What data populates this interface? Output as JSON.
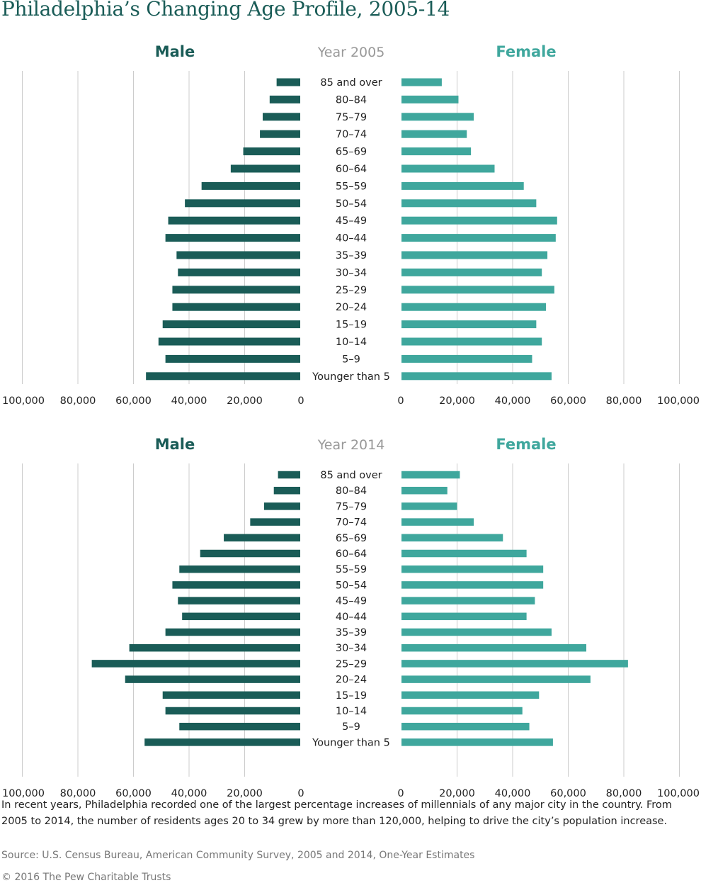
{
  "title": "Philadelphia’s Changing Age Profile, 2005-14",
  "colors": {
    "male": "#1a5c57",
    "female": "#3fa79d",
    "grid": "#cccccc",
    "year_label": "#999999",
    "text": "#222222"
  },
  "chart_data": [
    {
      "type": "bar",
      "subtype": "population-pyramid",
      "title": "Year 2005",
      "male_label": "Male",
      "female_label": "Female",
      "categories": [
        "85 and over",
        "80–84",
        "75–79",
        "70–74",
        "65–69",
        "60–64",
        "55–59",
        "50–54",
        "45–49",
        "40–44",
        "35–39",
        "30–34",
        "25–29",
        "20–24",
        "15–19",
        "10–14",
        "5–9",
        "Younger than 5"
      ],
      "series": [
        {
          "name": "Male",
          "values": [
            8500,
            11000,
            13500,
            14500,
            20500,
            25000,
            35500,
            41500,
            47500,
            48500,
            44500,
            44000,
            46000,
            46000,
            49500,
            51000,
            48500,
            55500
          ]
        },
        {
          "name": "Female",
          "values": [
            14500,
            20500,
            26000,
            23500,
            25000,
            33500,
            44000,
            48500,
            56000,
            55500,
            52500,
            50500,
            55000,
            52000,
            48500,
            50500,
            47000,
            54000
          ]
        }
      ],
      "xlim": [
        0,
        100000
      ],
      "tick_values": [
        0,
        20000,
        40000,
        60000,
        80000,
        100000
      ],
      "male_tick_labels": [
        "100,000",
        "80,000",
        "60,000",
        "40,000",
        "20,000",
        "0"
      ],
      "female_tick_labels": [
        "0",
        "20,000",
        "40,000",
        "60,000",
        "80,000",
        "100,000"
      ]
    },
    {
      "type": "bar",
      "subtype": "population-pyramid",
      "title": "Year 2014",
      "male_label": "Male",
      "female_label": "Female",
      "categories": [
        "85 and over",
        "80–84",
        "75–79",
        "70–74",
        "65–69",
        "60–64",
        "55–59",
        "50–54",
        "45–49",
        "40–44",
        "35–39",
        "30–34",
        "25–29",
        "20–24",
        "15–19",
        "10–14",
        "5–9",
        "Younger than 5"
      ],
      "series": [
        {
          "name": "Male",
          "values": [
            8000,
            9500,
            13000,
            18000,
            27500,
            36000,
            43500,
            46000,
            44000,
            42500,
            48500,
            61500,
            75000,
            63000,
            49500,
            48500,
            43500,
            56000
          ]
        },
        {
          "name": "Female",
          "values": [
            21000,
            16500,
            20000,
            26000,
            36500,
            45000,
            51000,
            51000,
            48000,
            45000,
            54000,
            66500,
            81500,
            68000,
            49500,
            43500,
            46000,
            54500
          ]
        }
      ],
      "xlim": [
        0,
        100000
      ],
      "tick_values": [
        0,
        20000,
        40000,
        60000,
        80000,
        100000
      ],
      "male_tick_labels": [
        "100,000",
        "80,000",
        "60,000",
        "40,000",
        "20,000",
        "0"
      ],
      "female_tick_labels": [
        "0",
        "20,000",
        "40,000",
        "60,000",
        "80,000",
        "100,000"
      ]
    }
  ],
  "caption": "In recent years, Philadelphia recorded one of the largest percentage increases of millennials of any major city in the country. From 2005 to 2014, the number of residents ages 20 to 34 grew by more than 120,000, helping to drive the city’s population increase.",
  "source": "Source: U.S. Census Bureau, American Community Survey, 2005 and 2014, One-Year Estimates",
  "copyright": "© 2016 The Pew Charitable Trusts"
}
